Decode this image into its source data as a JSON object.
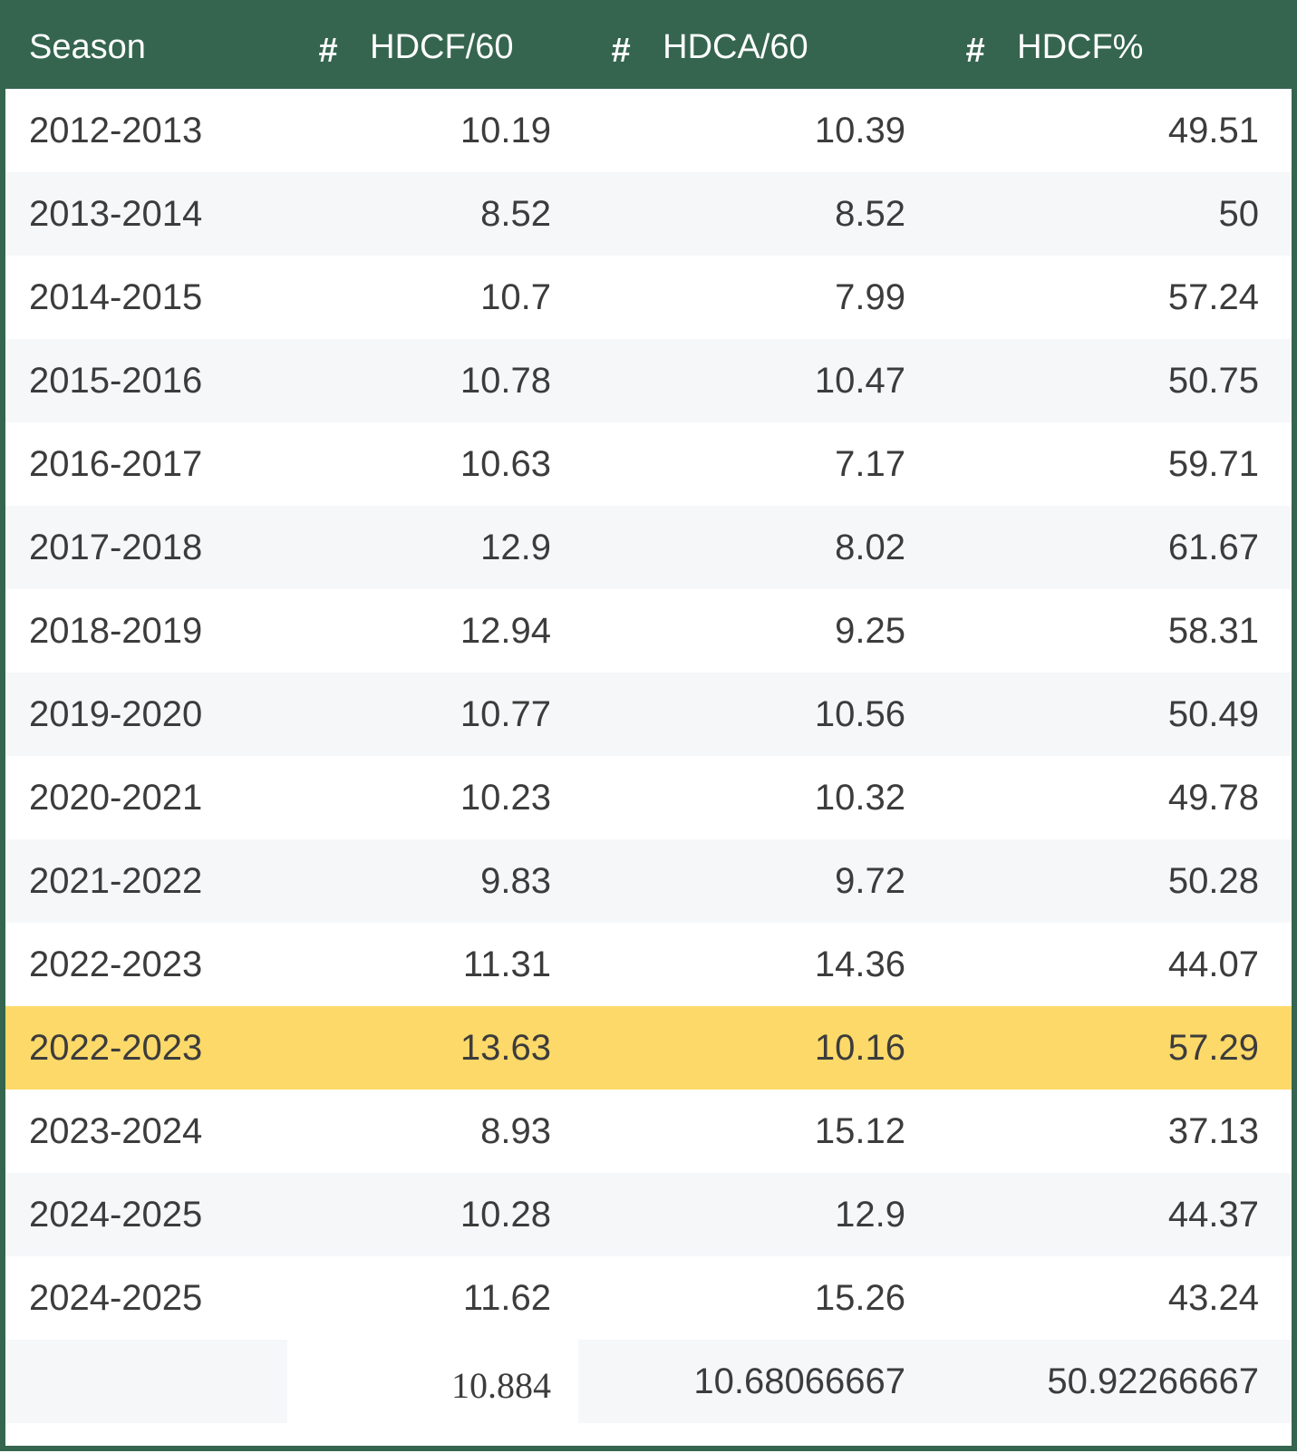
{
  "header": {
    "season": "Season",
    "hash": "#",
    "hdcf60": "HDCF/60",
    "hdca60": "HDCA/60",
    "hdcf_pct": "HDCF%"
  },
  "rows": [
    {
      "season": "2012-2013",
      "hdcf60": "10.19",
      "hdca60": "10.39",
      "hdcf_pct": "49.51",
      "highlight": false
    },
    {
      "season": "2013-2014",
      "hdcf60": "8.52",
      "hdca60": "8.52",
      "hdcf_pct": "50",
      "highlight": false
    },
    {
      "season": "2014-2015",
      "hdcf60": "10.7",
      "hdca60": "7.99",
      "hdcf_pct": "57.24",
      "highlight": false
    },
    {
      "season": "2015-2016",
      "hdcf60": "10.78",
      "hdca60": "10.47",
      "hdcf_pct": "50.75",
      "highlight": false
    },
    {
      "season": "2016-2017",
      "hdcf60": "10.63",
      "hdca60": "7.17",
      "hdcf_pct": "59.71",
      "highlight": false
    },
    {
      "season": "2017-2018",
      "hdcf60": "12.9",
      "hdca60": "8.02",
      "hdcf_pct": "61.67",
      "highlight": false
    },
    {
      "season": "2018-2019",
      "hdcf60": "12.94",
      "hdca60": "9.25",
      "hdcf_pct": "58.31",
      "highlight": false
    },
    {
      "season": "2019-2020",
      "hdcf60": "10.77",
      "hdca60": "10.56",
      "hdcf_pct": "50.49",
      "highlight": false
    },
    {
      "season": "2020-2021",
      "hdcf60": "10.23",
      "hdca60": "10.32",
      "hdcf_pct": "49.78",
      "highlight": false
    },
    {
      "season": "2021-2022",
      "hdcf60": "9.83",
      "hdca60": "9.72",
      "hdcf_pct": "50.28",
      "highlight": false
    },
    {
      "season": "2022-2023",
      "hdcf60": "11.31",
      "hdca60": "14.36",
      "hdcf_pct": "44.07",
      "highlight": false
    },
    {
      "season": "2022-2023",
      "hdcf60": "13.63",
      "hdca60": "10.16",
      "hdcf_pct": "57.29",
      "highlight": true
    },
    {
      "season": "2023-2024",
      "hdcf60": "8.93",
      "hdca60": "15.12",
      "hdcf_pct": "37.13",
      "highlight": false
    },
    {
      "season": "2024-2025",
      "hdcf60": "10.28",
      "hdca60": "12.9",
      "hdcf_pct": "44.37",
      "highlight": false
    },
    {
      "season": "2024-2025",
      "hdcf60": "11.62",
      "hdca60": "15.26",
      "hdcf_pct": "43.24",
      "highlight": false
    }
  ],
  "footer": {
    "season": "",
    "hdcf60": "10.884",
    "hdca60": "10.68066667",
    "hdcf_pct": "50.92266667"
  },
  "colors": {
    "header_bg": "#35654f",
    "header_text": "#ffffff",
    "row_alt_bg": "#f6f7f9",
    "highlight_bg": "#fdd969"
  }
}
